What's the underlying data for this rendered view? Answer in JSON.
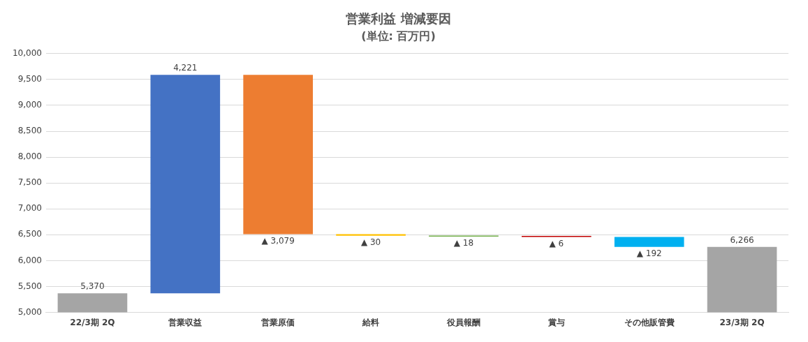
{
  "chart_data": {
    "type": "bar",
    "title": "営業利益 増減要因",
    "subtitle": "(単位: 百万円)",
    "categories": [
      "22/3期 2Q",
      "営業収益",
      "営業原価",
      "給料",
      "役員報酬",
      "賞与",
      "その他販管費",
      "23/3期 2Q"
    ],
    "values": [
      5370,
      4221,
      -3079,
      -30,
      -18,
      -6,
      -192,
      6266
    ],
    "base": [
      0,
      5370,
      9591,
      6512,
      6482,
      6464,
      6458,
      0
    ],
    "colors": [
      "#a5a5a5",
      "#4472c4",
      "#ed7d31",
      "#ffc000",
      "#70ad47",
      "#c00000",
      "#00b0f0",
      "#a5a5a5"
    ],
    "value_labels": [
      "5,370",
      "4,221",
      "▲ 3,079",
      "▲ 30",
      "▲ 18",
      "▲ 6",
      "▲ 192",
      "6,266"
    ],
    "ylim": [
      5000,
      10000
    ],
    "yticks": [
      {
        "value": 5000,
        "label": "5,000"
      },
      {
        "value": 5500,
        "label": "5,500"
      },
      {
        "value": 6000,
        "label": "6,000"
      },
      {
        "value": 6500,
        "label": "6,500"
      },
      {
        "value": 7000,
        "label": "7,000"
      },
      {
        "value": 7500,
        "label": "7,500"
      },
      {
        "value": 8000,
        "label": "8,000"
      },
      {
        "value": 8500,
        "label": "8,500"
      },
      {
        "value": 9000,
        "label": "9,000"
      },
      {
        "value": 9500,
        "label": "9,500"
      },
      {
        "value": 10000,
        "label": "10,000"
      }
    ],
    "grid": "y",
    "legend": false
  }
}
